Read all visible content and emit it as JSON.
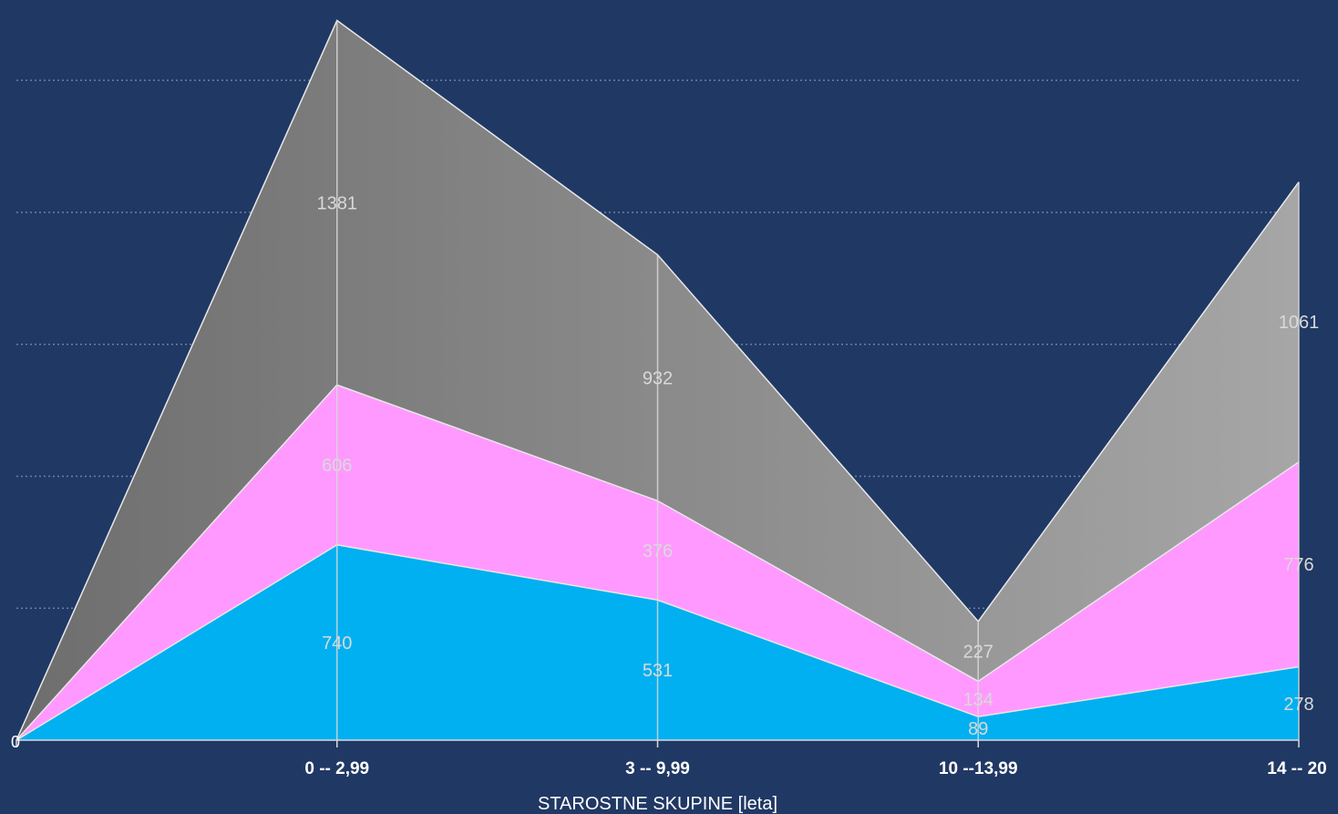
{
  "chart_data": {
    "type": "area",
    "stacked": true,
    "categories": [
      "",
      "0 -- 2,99",
      "3 -- 9,99",
      "10 --13,99",
      "14 -- 20"
    ],
    "xlabel": "STAROSTNE SKUPINE [leta]",
    "ylabel": "",
    "ylim": [
      0,
      2770
    ],
    "y_origin_label": "0",
    "grid": true,
    "series": [
      {
        "values": [
          0,
          740,
          531,
          89,
          278
        ],
        "color": "#00b0f0"
      },
      {
        "values": [
          0,
          606,
          376,
          134,
          776
        ],
        "color": "#ff99ff"
      },
      {
        "values": [
          0,
          1381,
          932,
          227,
          1061
        ],
        "color": "#8c8c8c"
      }
    ],
    "data_labels": [
      [
        "",
        "740",
        "531",
        "89",
        "278"
      ],
      [
        "",
        "606",
        "376",
        "134",
        "776"
      ],
      [
        "",
        "1381",
        "932",
        "227",
        "1061"
      ]
    ]
  }
}
